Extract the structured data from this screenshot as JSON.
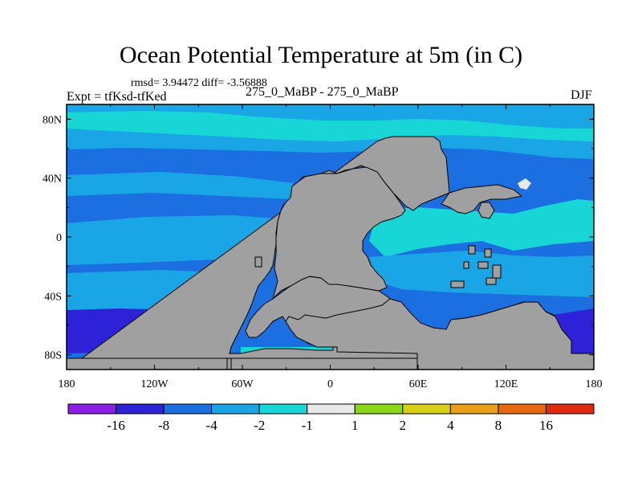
{
  "title": "Ocean Potential Temperature at 5m (in C)",
  "stats_text": "rmsd= 3.94472 diff= -3.56888",
  "experiment_label": "Expt = tfKsd-tfKed",
  "subtitle": "275_0_MaBP - 275_0_MaBP",
  "season": "DJF",
  "map": {
    "lat_labels": [
      "80N",
      "40N",
      "0",
      "40S",
      "80S"
    ],
    "lat_values": [
      80,
      40,
      0,
      -40,
      -80
    ],
    "lon_labels": [
      "180",
      "120W",
      "60W",
      "0",
      "60E",
      "120E",
      "180"
    ],
    "lon_values": [
      -180,
      -120,
      -60,
      0,
      60,
      120,
      180
    ],
    "lat_range": [
      -90,
      90
    ],
    "lon_range": [
      -180,
      180
    ],
    "land_color": "#a0a0a0"
  },
  "colorbar": {
    "labels": [
      "-16",
      "-8",
      "-4",
      "-2",
      "-1",
      "1",
      "2",
      "4",
      "8",
      "16"
    ],
    "colors": [
      "#8a1ee6",
      "#2e22d8",
      "#1b6fe0",
      "#1aa6e6",
      "#18d6d6",
      "#e8e8e8",
      "#88d818",
      "#d8d018",
      "#e8a018",
      "#e86a10",
      "#e02a10"
    ]
  }
}
